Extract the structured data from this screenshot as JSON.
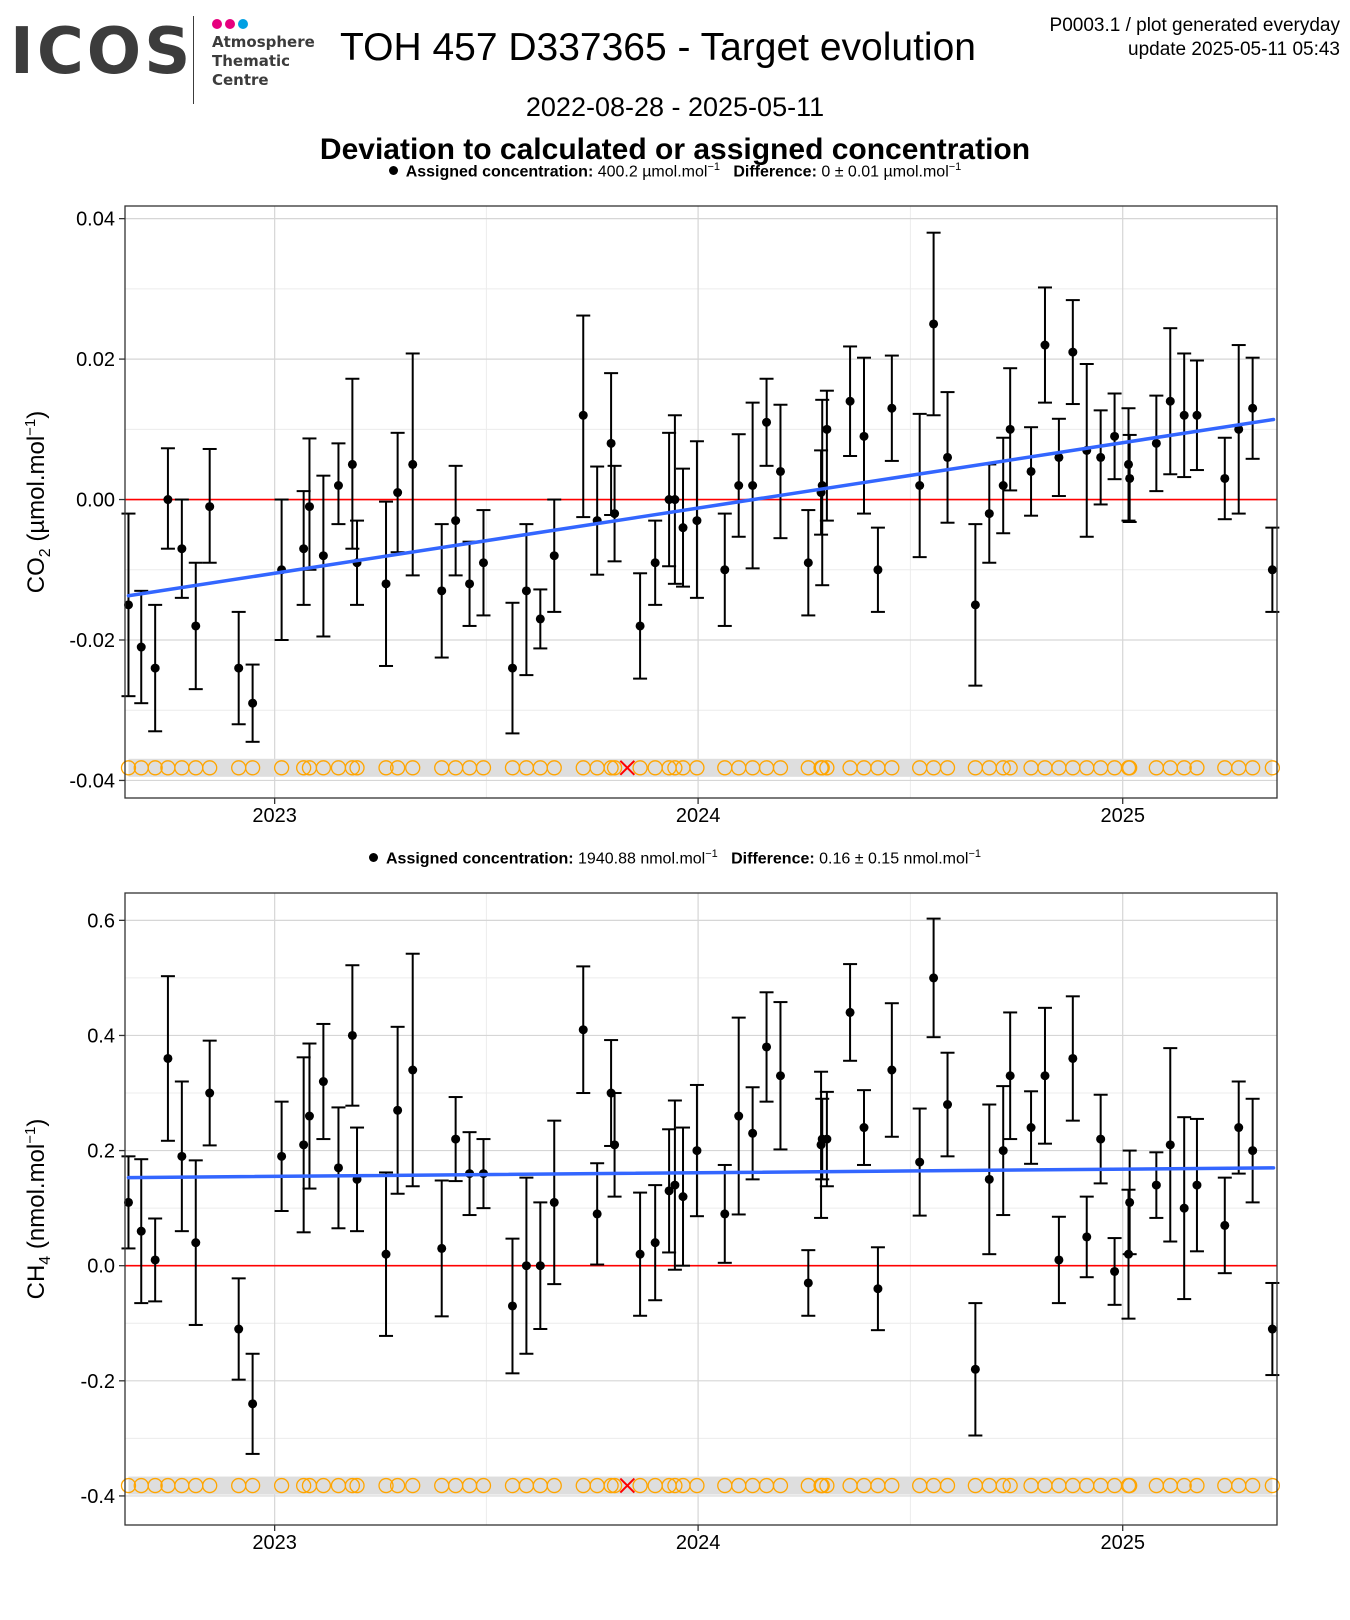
{
  "header": {
    "logo_text": "ICOS",
    "logo_subtitle": [
      "Atmosphere",
      "Thematic",
      "Centre"
    ],
    "logo_dot_colors": [
      "#e6007e",
      "#e6007e",
      "#00a0e3"
    ],
    "title": "TOH 457 D337365 - Target evolution",
    "plot_id": "P0003.1 / plot generated everyday",
    "update": "update  2025-05-11 05:43",
    "date_range": "2022-08-28 - 2025-05-11",
    "heading": "Deviation to calculated or assigned concentration"
  },
  "colors": {
    "trend": "#3366ff",
    "zero_line": "#ff0000",
    "flag_marker": "#ffa500",
    "flag_band": "#dedede",
    "rejected_marker": "#ff0000"
  },
  "chart_data": [
    {
      "type": "scatter",
      "legend": {
        "label": "Assigned concentration:",
        "value": "400.2 µmol.mol",
        "exp": "−1",
        "diff_label": "Difference:",
        "diff_value": "0 ± 0.01 µmol.mol",
        "diff_exp": "−1"
      },
      "ylabel": "CO",
      "ylabel_sub": "2",
      "ylabel_unit": "(µmol.mol",
      "ylabel_exp": "−1",
      "ylabel_close": ")",
      "xlim": [
        "2022-08-25",
        "2025-05-14"
      ],
      "ylim": [
        -0.0425,
        0.0418
      ],
      "yticks": [
        0.04,
        0.02,
        0.0,
        -0.02,
        -0.04
      ],
      "ytick_labels": [
        "0.04",
        "0.02",
        "0.00",
        "-0.02",
        "-0.04"
      ],
      "xticks": [
        "2023-01-01",
        "2024-01-01",
        "2025-01-01"
      ],
      "xtick_labels": [
        "2023",
        "2024",
        "2025"
      ],
      "trend": {
        "start": [
          "2022-08-28",
          -0.0137
        ],
        "end": [
          "2025-05-11",
          0.0114
        ]
      },
      "flag_y": -0.0382,
      "rejected_date": "2023-11-01",
      "points": [
        [
          "2022-08-28",
          -0.015,
          -0.028,
          -0.002
        ],
        [
          "2022-09-08",
          -0.021,
          -0.029,
          -0.013
        ],
        [
          "2022-09-20",
          -0.024,
          -0.033,
          -0.015
        ],
        [
          "2022-10-01",
          0.0,
          -0.007,
          0.0073
        ],
        [
          "2022-10-13",
          -0.007,
          -0.014,
          0.0
        ],
        [
          "2022-10-25",
          -0.018,
          -0.027,
          -0.009
        ],
        [
          "2022-11-06",
          -0.001,
          -0.009,
          0.0072
        ],
        [
          "2022-12-01",
          -0.024,
          -0.032,
          -0.016
        ],
        [
          "2022-12-13",
          -0.029,
          -0.0345,
          -0.0235
        ],
        [
          "2023-01-07",
          -0.01,
          -0.02,
          0.0
        ],
        [
          "2023-01-26",
          -0.007,
          -0.015,
          0.0012
        ],
        [
          "2023-01-31",
          -0.001,
          -0.01,
          0.0087
        ],
        [
          "2023-02-12",
          -0.008,
          -0.0195,
          0.0034
        ],
        [
          "2023-02-25",
          0.002,
          -0.0035,
          0.008
        ],
        [
          "2023-03-09",
          0.005,
          -0.007,
          0.0172
        ],
        [
          "2023-03-13",
          -0.009,
          -0.015,
          -0.003
        ],
        [
          "2023-04-07",
          -0.012,
          -0.0237,
          -0.0003
        ],
        [
          "2023-04-17",
          0.001,
          -0.0075,
          0.0095
        ],
        [
          "2023-04-30",
          0.005,
          -0.0108,
          0.0208
        ],
        [
          "2023-05-25",
          -0.013,
          -0.0225,
          -0.0035
        ],
        [
          "2023-06-06",
          -0.003,
          -0.0108,
          0.0048
        ],
        [
          "2023-06-18",
          -0.012,
          -0.018,
          -0.006
        ],
        [
          "2023-06-30",
          -0.009,
          -0.0165,
          -0.0015
        ],
        [
          "2023-07-25",
          -0.024,
          -0.0333,
          -0.0147
        ],
        [
          "2023-08-06",
          -0.013,
          -0.025,
          -0.0035
        ],
        [
          "2023-08-18",
          -0.017,
          -0.0212,
          -0.0128
        ],
        [
          "2023-08-30",
          -0.008,
          -0.016,
          0.0
        ],
        [
          "2023-09-24",
          0.012,
          -0.0025,
          0.0262
        ],
        [
          "2023-10-06",
          -0.003,
          -0.0107,
          0.0047
        ],
        [
          "2023-10-18",
          0.008,
          -0.0022,
          0.018
        ],
        [
          "2023-10-21",
          -0.002,
          -0.0088,
          0.0048
        ],
        [
          "2023-11-12",
          -0.018,
          -0.0255,
          -0.0105
        ],
        [
          "2023-11-25",
          -0.009,
          -0.015,
          -0.003
        ],
        [
          "2023-12-07",
          0.0,
          -0.0095,
          0.0095
        ],
        [
          "2023-12-12",
          0.0,
          -0.012,
          0.012
        ],
        [
          "2023-12-19",
          -0.004,
          -0.0124,
          0.0044
        ],
        [
          "2023-12-31",
          -0.003,
          -0.014,
          0.0083
        ],
        [
          "2024-01-24",
          -0.01,
          -0.018,
          -0.002
        ],
        [
          "2024-02-05",
          0.002,
          -0.0053,
          0.0093
        ],
        [
          "2024-02-17",
          0.002,
          -0.0098,
          0.0138
        ],
        [
          "2024-02-29",
          0.011,
          0.0048,
          0.0172
        ],
        [
          "2024-03-12",
          0.004,
          -0.0055,
          0.0135
        ],
        [
          "2024-04-05",
          -0.009,
          -0.0165,
          -0.0015
        ],
        [
          "2024-04-16",
          0.001,
          -0.005,
          0.007
        ],
        [
          "2024-04-17",
          0.002,
          -0.0122,
          0.0142
        ],
        [
          "2024-04-21",
          0.01,
          -0.003,
          0.0155
        ],
        [
          "2024-05-11",
          0.014,
          0.0062,
          0.0218
        ],
        [
          "2024-05-23",
          0.009,
          -0.002,
          0.0202
        ],
        [
          "2024-06-04",
          -0.01,
          -0.016,
          -0.004
        ],
        [
          "2024-06-16",
          0.013,
          0.0055,
          0.0205
        ],
        [
          "2024-07-10",
          0.002,
          -0.0082,
          0.0122
        ],
        [
          "2024-07-22",
          0.025,
          0.012,
          0.038
        ],
        [
          "2024-08-03",
          0.006,
          -0.0033,
          0.0153
        ],
        [
          "2024-08-27",
          -0.015,
          -0.0265,
          -0.0035
        ],
        [
          "2024-09-08",
          -0.002,
          -0.009,
          0.005
        ],
        [
          "2024-09-20",
          0.002,
          -0.0048,
          0.0088
        ],
        [
          "2024-09-26",
          0.01,
          0.0013,
          0.0187
        ],
        [
          "2024-10-14",
          0.004,
          -0.0023,
          0.0103
        ],
        [
          "2024-10-26",
          0.022,
          0.0138,
          0.0302
        ],
        [
          "2024-11-07",
          0.006,
          0.0005,
          0.0115
        ],
        [
          "2024-11-19",
          0.021,
          0.0136,
          0.0284
        ],
        [
          "2024-12-01",
          0.007,
          -0.0053,
          0.0193
        ],
        [
          "2024-12-13",
          0.006,
          -0.0007,
          0.0127
        ],
        [
          "2024-12-25",
          0.009,
          0.0029,
          0.0151
        ],
        [
          "2025-01-06",
          0.005,
          -0.003,
          0.013
        ],
        [
          "2025-01-07",
          0.003,
          -0.0032,
          0.0092
        ],
        [
          "2025-01-30",
          0.008,
          0.0012,
          0.0148
        ],
        [
          "2025-02-11",
          0.014,
          0.0036,
          0.0244
        ],
        [
          "2025-02-23",
          0.012,
          0.0032,
          0.0208
        ],
        [
          "2025-03-06",
          0.012,
          0.0042,
          0.0198
        ],
        [
          "2025-03-30",
          0.003,
          -0.0028,
          0.0088
        ],
        [
          "2025-04-11",
          0.01,
          -0.002,
          0.022
        ],
        [
          "2025-04-23",
          0.013,
          0.0058,
          0.0202
        ],
        [
          "2025-05-10",
          -0.01,
          -0.016,
          -0.004
        ]
      ]
    },
    {
      "type": "scatter",
      "legend": {
        "label": "Assigned concentration:",
        "value": "1940.88 nmol.mol",
        "exp": "−1",
        "diff_label": "Difference:",
        "diff_value": "0.16 ± 0.15 nmol.mol",
        "diff_exp": "−1"
      },
      "ylabel": "CH",
      "ylabel_sub": "4",
      "ylabel_unit": "(nmol.mol",
      "ylabel_exp": "−1",
      "ylabel_close": ")",
      "xlim": [
        "2022-08-25",
        "2025-05-14"
      ],
      "ylim": [
        -0.4505,
        0.6475
      ],
      "yticks": [
        0.6,
        0.4,
        0.2,
        0.0,
        -0.2,
        -0.4
      ],
      "ytick_labels": [
        "0.6",
        "0.4",
        "0.2",
        "0.0",
        "-0.2",
        "-0.4"
      ],
      "xticks": [
        "2023-01-01",
        "2024-01-01",
        "2025-01-01"
      ],
      "xtick_labels": [
        "2023",
        "2024",
        "2025"
      ],
      "trend": {
        "start": [
          "2022-08-28",
          0.153
        ],
        "end": [
          "2025-05-11",
          0.17
        ]
      },
      "flag_y": -0.382,
      "rejected_date": "2023-11-01",
      "points": [
        [
          "2022-08-28",
          0.11,
          0.03,
          0.19
        ],
        [
          "2022-09-08",
          0.06,
          -0.065,
          0.185
        ],
        [
          "2022-09-20",
          0.01,
          -0.062,
          0.082
        ],
        [
          "2022-10-01",
          0.36,
          0.217,
          0.503
        ],
        [
          "2022-10-13",
          0.19,
          0.06,
          0.32
        ],
        [
          "2022-10-25",
          0.04,
          -0.103,
          0.183
        ],
        [
          "2022-11-06",
          0.3,
          0.209,
          0.391
        ],
        [
          "2022-12-01",
          -0.11,
          -0.198,
          -0.022
        ],
        [
          "2022-12-13",
          -0.24,
          -0.327,
          -0.153
        ],
        [
          "2023-01-07",
          0.19,
          0.095,
          0.285
        ],
        [
          "2023-01-26",
          0.21,
          0.058,
          0.362
        ],
        [
          "2023-01-31",
          0.26,
          0.134,
          0.386
        ],
        [
          "2023-02-12",
          0.32,
          0.22,
          0.42
        ],
        [
          "2023-02-25",
          0.17,
          0.065,
          0.275
        ],
        [
          "2023-03-09",
          0.4,
          0.278,
          0.522
        ],
        [
          "2023-03-13",
          0.15,
          0.06,
          0.24
        ],
        [
          "2023-04-07",
          0.02,
          -0.122,
          0.162
        ],
        [
          "2023-04-17",
          0.27,
          0.125,
          0.415
        ],
        [
          "2023-04-30",
          0.34,
          0.138,
          0.542
        ],
        [
          "2023-05-25",
          0.03,
          -0.088,
          0.148
        ],
        [
          "2023-06-06",
          0.22,
          0.147,
          0.293
        ],
        [
          "2023-06-18",
          0.16,
          0.088,
          0.232
        ],
        [
          "2023-06-30",
          0.16,
          0.1,
          0.22
        ],
        [
          "2023-07-25",
          -0.07,
          -0.187,
          0.047
        ],
        [
          "2023-08-06",
          0.0,
          -0.153,
          0.153
        ],
        [
          "2023-08-18",
          0.0,
          -0.11,
          0.11
        ],
        [
          "2023-08-30",
          0.11,
          -0.032,
          0.252
        ],
        [
          "2023-09-24",
          0.41,
          0.3,
          0.52
        ],
        [
          "2023-10-06",
          0.09,
          0.002,
          0.178
        ],
        [
          "2023-10-18",
          0.3,
          0.208,
          0.392
        ],
        [
          "2023-10-21",
          0.21,
          0.12,
          0.3
        ],
        [
          "2023-11-12",
          0.02,
          -0.087,
          0.127
        ],
        [
          "2023-11-25",
          0.04,
          -0.06,
          0.14
        ],
        [
          "2023-12-07",
          0.13,
          0.023,
          0.237
        ],
        [
          "2023-12-12",
          0.14,
          -0.007,
          0.287
        ],
        [
          "2023-12-19",
          0.12,
          0.0,
          0.24
        ],
        [
          "2023-12-31",
          0.2,
          0.086,
          0.314
        ],
        [
          "2024-01-24",
          0.09,
          0.005,
          0.175
        ],
        [
          "2024-02-05",
          0.26,
          0.089,
          0.431
        ],
        [
          "2024-02-17",
          0.23,
          0.15,
          0.31
        ],
        [
          "2024-02-29",
          0.38,
          0.285,
          0.475
        ],
        [
          "2024-03-12",
          0.33,
          0.202,
          0.458
        ],
        [
          "2024-04-05",
          -0.03,
          -0.087,
          0.027
        ],
        [
          "2024-04-16",
          0.21,
          0.083,
          0.337
        ],
        [
          "2024-04-17",
          0.22,
          0.15,
          0.29
        ],
        [
          "2024-04-21",
          0.22,
          0.138,
          0.302
        ],
        [
          "2024-05-11",
          0.44,
          0.356,
          0.524
        ],
        [
          "2024-05-23",
          0.24,
          0.175,
          0.305
        ],
        [
          "2024-06-04",
          -0.04,
          -0.112,
          0.032
        ],
        [
          "2024-06-16",
          0.34,
          0.224,
          0.456
        ],
        [
          "2024-07-10",
          0.18,
          0.087,
          0.273
        ],
        [
          "2024-07-22",
          0.5,
          0.397,
          0.603
        ],
        [
          "2024-08-03",
          0.28,
          0.19,
          0.37
        ],
        [
          "2024-08-27",
          -0.18,
          -0.295,
          -0.065
        ],
        [
          "2024-09-08",
          0.15,
          0.02,
          0.28
        ],
        [
          "2024-09-20",
          0.2,
          0.088,
          0.312
        ],
        [
          "2024-09-26",
          0.33,
          0.22,
          0.44
        ],
        [
          "2024-10-14",
          0.24,
          0.177,
          0.303
        ],
        [
          "2024-10-26",
          0.33,
          0.212,
          0.448
        ],
        [
          "2024-11-07",
          0.01,
          -0.065,
          0.085
        ],
        [
          "2024-11-19",
          0.36,
          0.252,
          0.468
        ],
        [
          "2024-12-01",
          0.05,
          -0.02,
          0.12
        ],
        [
          "2024-12-13",
          0.22,
          0.143,
          0.297
        ],
        [
          "2024-12-25",
          -0.01,
          -0.068,
          0.048
        ],
        [
          "2025-01-06",
          0.02,
          -0.092,
          0.132
        ],
        [
          "2025-01-07",
          0.11,
          0.02,
          0.2
        ],
        [
          "2025-01-30",
          0.14,
          0.083,
          0.197
        ],
        [
          "2025-02-11",
          0.21,
          0.042,
          0.378
        ],
        [
          "2025-02-23",
          0.1,
          -0.058,
          0.258
        ],
        [
          "2025-03-06",
          0.14,
          0.025,
          0.255
        ],
        [
          "2025-03-30",
          0.07,
          -0.013,
          0.153
        ],
        [
          "2025-04-11",
          0.24,
          0.16,
          0.32
        ],
        [
          "2025-04-23",
          0.2,
          0.11,
          0.29
        ],
        [
          "2025-05-10",
          -0.11,
          -0.19,
          -0.03
        ]
      ]
    }
  ]
}
